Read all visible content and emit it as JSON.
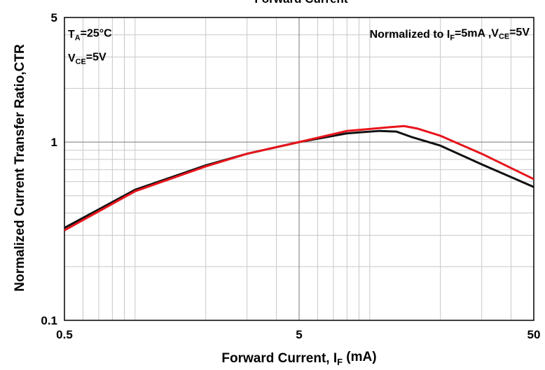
{
  "chart_data": {
    "type": "line",
    "title": "Forward Current",
    "xlabel": [
      {
        "text": "Forward Current, I"
      },
      {
        "text": "F",
        "sub": true
      },
      {
        "text": " (mA)"
      }
    ],
    "ylabel": "Normalized Current Transfer Ratio,CTR",
    "annotations": [
      [
        {
          "text": "T"
        },
        {
          "text": "A",
          "sub": true
        },
        {
          "text": "=25°C"
        }
      ],
      [
        {
          "text": "V"
        },
        {
          "text": "CE",
          "sub": true
        },
        {
          "text": "=5V"
        }
      ],
      [
        {
          "text": "Normalized to I"
        },
        {
          "text": "F",
          "sub": true
        },
        {
          "text": "=5mA ,V"
        },
        {
          "text": "CE",
          "sub": true
        },
        {
          "text": "=5V"
        }
      ]
    ],
    "xscale": "log",
    "yscale": "log",
    "xlim": [
      0.5,
      50
    ],
    "ylim": [
      0.1,
      5
    ],
    "xticks": [
      0.5,
      5,
      50
    ],
    "yticks": [
      {
        "value": 0.1,
        "label": "0.1"
      },
      1,
      5
    ],
    "xminorticks": [
      0.6,
      0.7,
      0.8,
      0.9,
      1,
      2,
      3,
      4,
      6,
      7,
      8,
      9,
      10,
      20,
      30,
      40
    ],
    "yminorticks": [
      0.2,
      0.3,
      0.4,
      0.5,
      0.6,
      0.7,
      0.8,
      0.9,
      2,
      3,
      4
    ],
    "grid": true,
    "series": [
      {
        "color": "#111111",
        "x": [
          0.5,
          1,
          2,
          3,
          5,
          8,
          11,
          13,
          15,
          20,
          30,
          50
        ],
        "values": [
          0.33,
          0.54,
          0.74,
          0.86,
          1.0,
          1.12,
          1.155,
          1.145,
          1.07,
          0.955,
          0.75,
          0.56
        ]
      },
      {
        "color": "#e8141b",
        "x": [
          0.5,
          1,
          2,
          3,
          5,
          8,
          12,
          14,
          16,
          20,
          30,
          50
        ],
        "values": [
          0.32,
          0.53,
          0.73,
          0.86,
          1.0,
          1.155,
          1.21,
          1.23,
          1.19,
          1.085,
          0.86,
          0.62
        ]
      }
    ]
  }
}
